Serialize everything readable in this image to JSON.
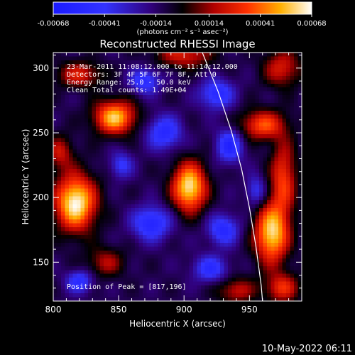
{
  "chart_data": {
    "type": "heatmap",
    "title": "Reconstructed RHESSI Image",
    "xlabel": "Heliocentric X (arcsec)",
    "ylabel": "Heliocentric Y (arcsec)",
    "xlim": [
      800,
      990
    ],
    "ylim": [
      120,
      312
    ],
    "x_ticks": [
      800,
      850,
      900,
      950
    ],
    "y_ticks": [
      150,
      200,
      250,
      300
    ],
    "colorbar": {
      "ticks": [
        "-0.00068",
        "-0.00041",
        "-0.00014",
        "0.00014",
        "0.00041",
        "0.00068"
      ],
      "tick_values": [
        -0.00068,
        -0.00041,
        -0.00014,
        0.00014,
        0.00041,
        0.00068
      ],
      "unit_label": "(photons cm⁻² s⁻¹ asec⁻²)",
      "colors": [
        "#1a1aff",
        "#3030ff",
        "#000000",
        "#ff0000",
        "#ffb000",
        "#ffffff"
      ]
    },
    "annotations": [
      "23-Mar-2011 11:08:12.000 to 11:14:12.000",
      "Detectors: 3F 4F 5F 6F 7F 8F, Att 0",
      "Energy Range: 25.0 - 50.0 keV",
      "Clean    Total counts: 1.49E+04"
    ],
    "peak_label": "Position of Peak = [817,196]",
    "peak": [
      817,
      196
    ],
    "sources": [
      {
        "x": 817,
        "y": 196,
        "sx": 11,
        "sy": 15,
        "a": 1.0
      },
      {
        "x": 904,
        "y": 208,
        "sx": 9,
        "sy": 13,
        "a": 0.95
      },
      {
        "x": 967,
        "y": 172,
        "sx": 9,
        "sy": 16,
        "a": 0.9
      },
      {
        "x": 847,
        "y": 262,
        "sx": 11,
        "sy": 9,
        "a": 0.85
      },
      {
        "x": 960,
        "y": 256,
        "sx": 12,
        "sy": 8,
        "a": 0.6
      },
      {
        "x": 976,
        "y": 215,
        "sx": 7,
        "sy": 20,
        "a": 0.55
      },
      {
        "x": 820,
        "y": 295,
        "sx": 12,
        "sy": 7,
        "a": 0.45
      },
      {
        "x": 900,
        "y": 310,
        "sx": 15,
        "sy": 7,
        "a": 0.45
      },
      {
        "x": 975,
        "y": 300,
        "sx": 10,
        "sy": 10,
        "a": 0.45
      },
      {
        "x": 840,
        "y": 150,
        "sx": 10,
        "sy": 8,
        "a": 0.35
      },
      {
        "x": 805,
        "y": 235,
        "sx": 7,
        "sy": 9,
        "a": 0.4
      },
      {
        "x": 940,
        "y": 128,
        "sx": 10,
        "sy": 7,
        "a": 0.4
      },
      {
        "x": 975,
        "y": 130,
        "sx": 9,
        "sy": 8,
        "a": 0.5
      }
    ],
    "negatives": [
      {
        "x": 885,
        "y": 250,
        "sx": 9,
        "sy": 9,
        "a": 0.55
      },
      {
        "x": 875,
        "y": 180,
        "sx": 10,
        "sy": 9,
        "a": 0.6
      },
      {
        "x": 925,
        "y": 280,
        "sx": 9,
        "sy": 8,
        "a": 0.55
      },
      {
        "x": 935,
        "y": 240,
        "sx": 7,
        "sy": 9,
        "a": 0.6
      },
      {
        "x": 930,
        "y": 175,
        "sx": 8,
        "sy": 8,
        "a": 0.55
      },
      {
        "x": 870,
        "y": 290,
        "sx": 8,
        "sy": 7,
        "a": 0.5
      },
      {
        "x": 920,
        "y": 145,
        "sx": 9,
        "sy": 7,
        "a": 0.5
      },
      {
        "x": 820,
        "y": 135,
        "sx": 7,
        "sy": 6,
        "a": 0.5
      },
      {
        "x": 955,
        "y": 205,
        "sx": 5,
        "sy": 8,
        "a": 0.4
      },
      {
        "x": 852,
        "y": 225,
        "sx": 6,
        "sy": 7,
        "a": 0.4
      }
    ],
    "limb": [
      [
        914,
        312
      ],
      [
        926,
        282
      ],
      [
        936,
        252
      ],
      [
        944,
        222
      ],
      [
        950,
        192
      ],
      [
        955,
        162
      ],
      [
        959,
        132
      ],
      [
        960,
        120
      ]
    ]
  },
  "footer_timestamp": "10-May-2022 06:11"
}
